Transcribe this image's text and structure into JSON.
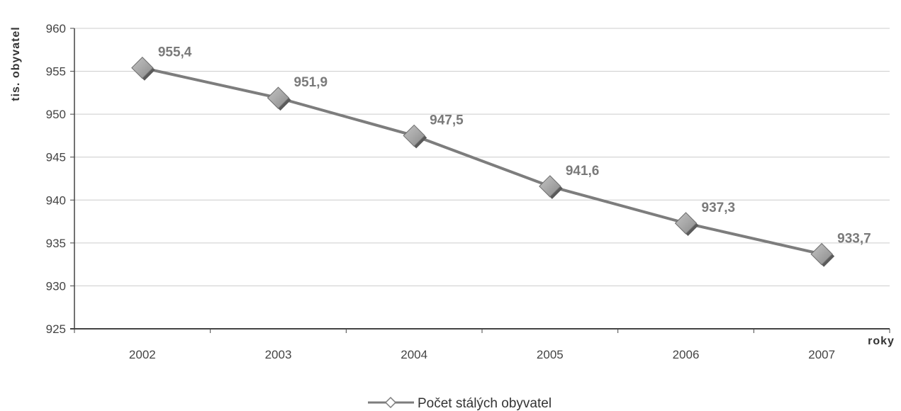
{
  "chart_data": {
    "type": "line",
    "categories": [
      "2002",
      "2003",
      "2004",
      "2005",
      "2006",
      "2007"
    ],
    "series": [
      {
        "name": "Počet stálých obyvatel",
        "values": [
          955.4,
          951.9,
          947.5,
          941.6,
          937.3,
          933.7
        ],
        "data_labels": [
          "955,4",
          "951,9",
          "947,5",
          "941,6",
          "937,3",
          "933,7"
        ]
      }
    ],
    "ylim": [
      925,
      960
    ],
    "y_ticks": [
      925,
      930,
      935,
      940,
      945,
      950,
      955,
      960
    ],
    "xlabel": "roky",
    "ylabel": "tis. obyvatel",
    "grid": true,
    "legend_position": "bottom-center",
    "colors": {
      "line": "#7d7d7d",
      "marker": "#9a9a9a",
      "marker_shadow": "#5a5a5a",
      "grid": "#cccccc",
      "axis": "#444444"
    }
  }
}
